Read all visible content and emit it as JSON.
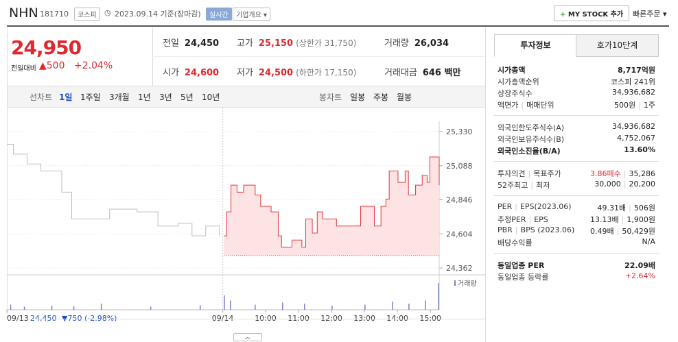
{
  "header": {
    "name": "NHN",
    "code": "181710",
    "market": "코스피",
    "date": "2023.09.14 기준(장마감)",
    "realtime": "실시간",
    "overview": "기업개요",
    "mystock": "MY STOCK 추가",
    "quick_order": "빠른주문"
  },
  "quote": {
    "price": "24,950",
    "change_label": "전일대비",
    "change": "▲500",
    "rate": "+2.04%",
    "stats": [
      {
        "label": "전일",
        "value": "24,450"
      },
      {
        "label": "고가",
        "value": "25,150",
        "note": "(상한가 31,750)"
      },
      {
        "label": "거래량",
        "value": "26,034"
      },
      {
        "label": "시가",
        "value": "24,600"
      },
      {
        "label": "저가",
        "value": "24,500",
        "note": "(하한가 17,150)"
      },
      {
        "label": "거래대금",
        "value": "646 백만"
      }
    ]
  },
  "tabs": {
    "line_label": "선차트",
    "periods": [
      "1일",
      "1주일",
      "3개월",
      "1년",
      "3년",
      "5년",
      "10년"
    ],
    "candle_label": "봉차트",
    "candles": [
      "일봉",
      "주봉",
      "월봉"
    ]
  },
  "chart_data": {
    "type": "line",
    "xlim": [
      -411,
      376
    ],
    "xticks": [
      {
        "value": -411,
        "label": "09/13"
      },
      {
        "value": -18,
        "label": "09/14"
      },
      {
        "value": 60,
        "label": "10:00"
      },
      {
        "value": 120,
        "label": "11:00"
      },
      {
        "value": 180,
        "label": "12:00"
      },
      {
        "value": 240,
        "label": "13:00"
      },
      {
        "value": 300,
        "label": "14:00"
      },
      {
        "value": 360,
        "label": "15:00"
      }
    ],
    "ylim": [
      24362,
      25330
    ],
    "yticks": [
      {
        "value": 24362,
        "label": "24,362"
      },
      {
        "value": 24604,
        "label": "24,604"
      },
      {
        "value": 24846,
        "label": "24,846"
      },
      {
        "value": 25088,
        "label": "25,088"
      },
      {
        "value": 25330,
        "label": "25,330"
      }
    ],
    "baseline": 24450,
    "series": [
      {
        "color": "#bdbdbd",
        "x": [
          -411,
          -399,
          -374,
          -349,
          -311,
          -293,
          -236,
          -224,
          -174,
          -136,
          -99,
          -74,
          -49,
          -24
        ],
        "values": [
          25240,
          25170,
          25100,
          25050,
          24900,
          24710,
          24710,
          24780,
          24760,
          24660,
          24680,
          24590,
          24660,
          24590
        ]
      },
      {
        "color": "#e8343a",
        "fill": "#fde3e3",
        "x": [
          -16,
          -11,
          -3,
          8,
          20,
          41,
          51,
          70,
          83,
          89,
          108,
          126,
          133,
          145,
          154,
          164,
          189,
          226,
          233,
          258,
          270,
          279,
          285,
          301,
          314,
          320,
          333,
          345,
          354,
          359,
          374,
          376
        ],
        "values": [
          24590,
          24760,
          24950,
          24900,
          24950,
          24880,
          24800,
          24760,
          24590,
          24510,
          24560,
          24510,
          24710,
          24610,
          24760,
          24710,
          24660,
          24660,
          24800,
          24660,
          24800,
          24850,
          25050,
          24970,
          25050,
          24880,
          24950,
          25020,
          24970,
          25150,
          25150,
          24950
        ]
      }
    ],
    "volume_label": "거래량",
    "volume_color": "#7b7fd0",
    "volume_ylim": [
      0,
      3000
    ],
    "volume": {
      "x": [
        -405,
        -380,
        -330,
        -290,
        -240,
        -150,
        -60,
        -16,
        -5,
        40,
        90,
        130,
        180,
        240,
        290,
        320,
        350,
        374
      ],
      "values": [
        500,
        300,
        400,
        350,
        600,
        300,
        450,
        1400,
        900,
        500,
        700,
        600,
        400,
        500,
        800,
        600,
        900,
        2600
      ]
    },
    "prev_day": {
      "price": "24,450",
      "change": "▼750 (-2.98%)"
    }
  },
  "info": {
    "tabs": [
      "투자정보",
      "호가10단계"
    ],
    "groups": [
      [
        {
          "label": [
            "시가총액"
          ],
          "value": [
            "8,717억원"
          ],
          "bold": true
        },
        {
          "label": [
            "시가총액순위"
          ],
          "value": [
            "코스피 241위"
          ]
        },
        {
          "label": [
            "상장주식수"
          ],
          "value": [
            "34,936,682"
          ]
        },
        {
          "label": [
            "액면가",
            "매매단위"
          ],
          "value": [
            "500원",
            "1주"
          ]
        }
      ],
      [
        {
          "label": [
            "외국인한도주식수(A)"
          ],
          "value": [
            "34,936,682"
          ]
        },
        {
          "label": [
            "외국인보유주식수(B)"
          ],
          "value": [
            "4,752,067"
          ]
        },
        {
          "label": [
            "외국인소진율(B/A)"
          ],
          "value": [
            "13.60%"
          ],
          "bold": true
        }
      ],
      [
        {
          "label": [
            "투자의견",
            "목표주가"
          ],
          "value": [
            "3.86매수",
            "35,286"
          ],
          "value_color": "#e0282e"
        },
        {
          "label": [
            "52주최고",
            "최저"
          ],
          "value": [
            "30,000",
            "20,200"
          ]
        }
      ],
      [
        {
          "label": [
            "PER",
            "EPS(2023.06)"
          ],
          "value": [
            "49.31배",
            "506원"
          ]
        },
        {
          "label": [
            "추정PER",
            "EPS"
          ],
          "value": [
            "13.13배",
            "1,900원"
          ]
        },
        {
          "label": [
            "PBR",
            "BPS (2023.06)"
          ],
          "value": [
            "0.49배",
            "50,429원"
          ]
        },
        {
          "label": [
            "배당수익률"
          ],
          "value": [
            "N/A"
          ]
        }
      ],
      [
        {
          "label": [
            "동일업종 PER"
          ],
          "value": [
            "22.09배"
          ],
          "bold": true
        },
        {
          "label": [
            "동일업종 등락률"
          ],
          "value": [
            "+2.64%"
          ],
          "value_color": "#e0282e"
        }
      ]
    ]
  }
}
